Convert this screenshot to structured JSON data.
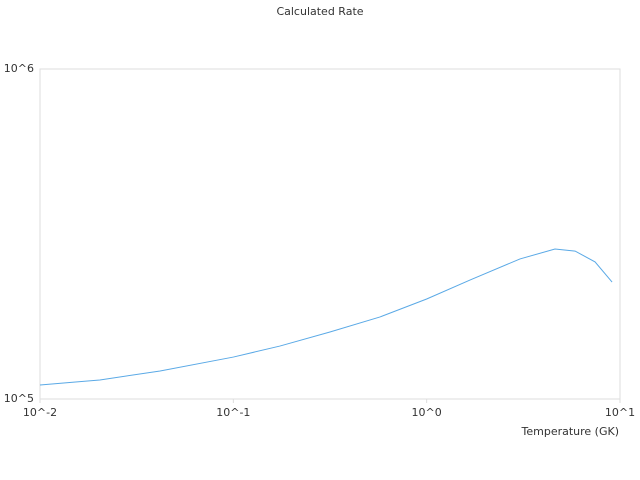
{
  "chart_data": {
    "type": "line",
    "title": "Calculated Rate",
    "x_label": "Temperature (GK)",
    "log_x": true,
    "log_y": true,
    "xlim": [
      0.01,
      10
    ],
    "ylim": [
      100000,
      1000000
    ],
    "xticks": [
      {
        "value": 0.01,
        "label": "10^-2"
      },
      {
        "value": 0.1,
        "label": "10^-1"
      },
      {
        "value": 1,
        "label": "10^0"
      },
      {
        "value": 10,
        "label": "10^1"
      }
    ],
    "yticks": [
      {
        "value": 100000,
        "label": "10^5"
      },
      {
        "value": 1000000,
        "label": "10^6"
      }
    ],
    "series": [
      {
        "color": "#5aa9e6",
        "x": [
          0.01,
          0.0204,
          0.0418,
          0.1,
          0.174,
          0.316,
          0.574,
          1,
          1.68,
          3.04,
          4.61,
          5.86,
          7.43,
          9.1
        ],
        "values": [
          110300,
          114200,
          121600,
          134000,
          144700,
          159600,
          177300,
          200900,
          229500,
          265700,
          284800,
          280700,
          260200,
          226200
        ]
      }
    ]
  }
}
